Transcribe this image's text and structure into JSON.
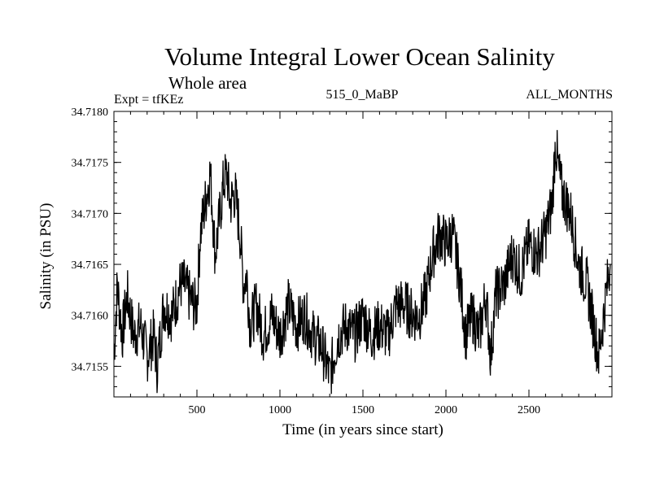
{
  "header": {
    "title": "Volume Integral Lower Ocean Salinity",
    "subtitle": "Whole area",
    "expt": "Expt = tfKEz",
    "run": "515_0_MaBP",
    "period": "ALL_MONTHS"
  },
  "chart_data": {
    "type": "line",
    "title": "Volume Integral Lower Ocean Salinity",
    "xlabel": "Time (in years since start)",
    "ylabel": "Salinity (in PSU)",
    "xlim": [
      0,
      3000
    ],
    "ylim": [
      34.7152,
      34.718
    ],
    "x_ticks": [
      500,
      1000,
      1500,
      2000,
      2500
    ],
    "y_ticks": [
      "34.7155",
      "34.7160",
      "34.7165",
      "34.7170",
      "34.7175",
      "34.7180"
    ],
    "grid": false,
    "series": [
      {
        "color": "#000000",
        "x": [
          0,
          20,
          50,
          80,
          120,
          160,
          200,
          240,
          260,
          300,
          350,
          400,
          420,
          450,
          480,
          500,
          520,
          540,
          560,
          580,
          610,
          640,
          660,
          680,
          700,
          730,
          760,
          780,
          800,
          820,
          860,
          900,
          950,
          1000,
          1050,
          1100,
          1150,
          1200,
          1250,
          1300,
          1350,
          1400,
          1450,
          1500,
          1550,
          1600,
          1650,
          1700,
          1750,
          1800,
          1840,
          1880,
          1920,
          1960,
          2000,
          2040,
          2080,
          2120,
          2160,
          2200,
          2240,
          2270,
          2300,
          2350,
          2400,
          2450,
          2500,
          2550,
          2600,
          2640,
          2660,
          2680,
          2700,
          2750,
          2800,
          2850,
          2880,
          2920,
          2950,
          2980,
          2990
        ],
        "y": [
          34.7156,
          34.7163,
          34.7158,
          34.7162,
          34.7158,
          34.7159,
          34.7156,
          34.7158,
          34.7155,
          34.7161,
          34.716,
          34.7163,
          34.7163,
          34.7162,
          34.7161,
          34.7161,
          34.7168,
          34.717,
          34.7172,
          34.7174,
          34.7166,
          34.717,
          34.7173,
          34.7174,
          34.7171,
          34.7172,
          34.7168,
          34.7163,
          34.7164,
          34.7159,
          34.7161,
          34.7158,
          34.716,
          34.7158,
          34.7161,
          34.7159,
          34.716,
          34.7158,
          34.7157,
          34.7154,
          34.7158,
          34.7159,
          34.7158,
          34.716,
          34.7158,
          34.7159,
          34.7158,
          34.7161,
          34.7161,
          34.716,
          34.716,
          34.7162,
          34.7166,
          34.7168,
          34.7167,
          34.7168,
          34.7164,
          34.7158,
          34.716,
          34.7158,
          34.7162,
          34.7156,
          34.7162,
          34.7163,
          34.7166,
          34.7164,
          34.7167,
          34.7166,
          34.7168,
          34.7171,
          34.7177,
          34.7174,
          34.7172,
          34.717,
          34.7165,
          34.7163,
          34.716,
          34.7156,
          34.716,
          34.7164,
          34.7165
        ]
      }
    ]
  }
}
